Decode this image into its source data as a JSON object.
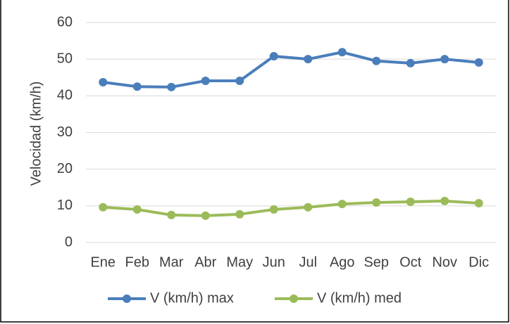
{
  "chart_data": {
    "type": "line",
    "y_label": "Velocidad (km/h)",
    "categories": [
      "Ene",
      "Feb",
      "Mar",
      "Abr",
      "May",
      "Jun",
      "Jul",
      "Ago",
      "Sep",
      "Oct",
      "Nov",
      "Dic"
    ],
    "series": [
      {
        "name": "V (km/h) max",
        "color": "#4a7ebb",
        "values": [
          43.7,
          42.5,
          42.4,
          44.1,
          44.1,
          50.8,
          50.0,
          51.9,
          49.5,
          48.9,
          50.0,
          49.1
        ]
      },
      {
        "name": "V (km/h) med",
        "color": "#9bbb59",
        "values": [
          9.6,
          9.0,
          7.5,
          7.3,
          7.7,
          9.0,
          9.6,
          10.5,
          10.9,
          11.1,
          11.3,
          10.7
        ]
      }
    ],
    "ylim": [
      0,
      60
    ],
    "yticks": [
      0,
      10,
      20,
      30,
      40,
      50,
      60
    ],
    "grid": true,
    "legend": "bottom"
  }
}
